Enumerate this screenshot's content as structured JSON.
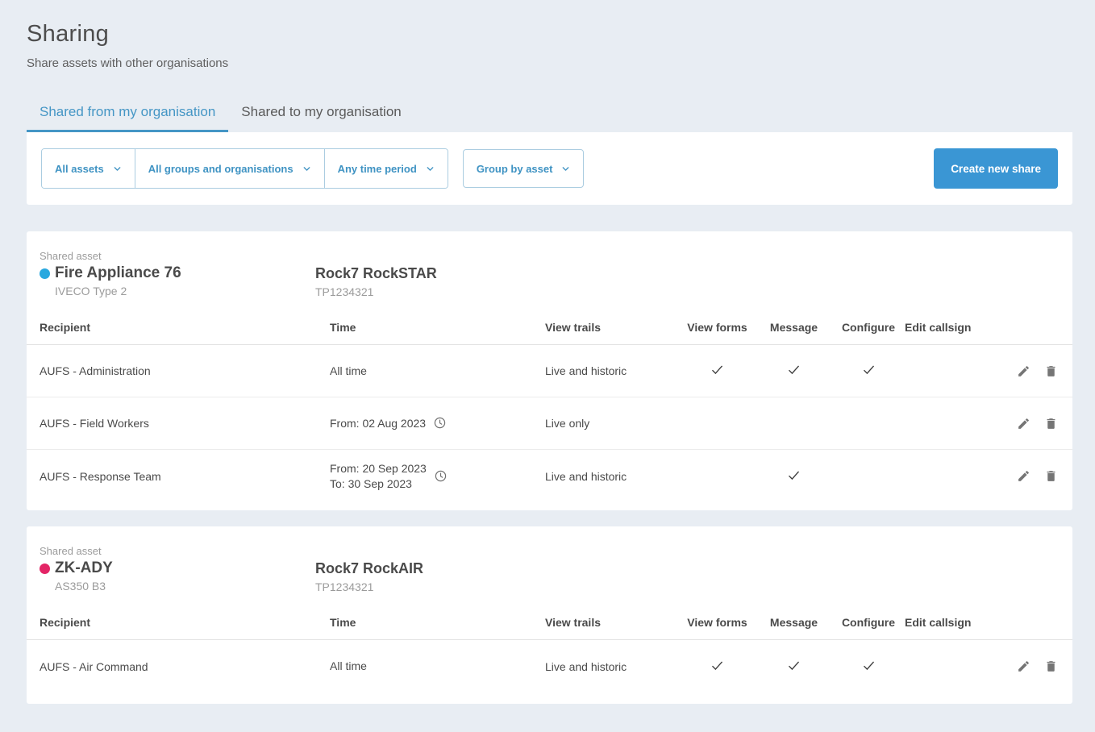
{
  "page": {
    "title": "Sharing",
    "subtitle": "Share assets with other organisations"
  },
  "tabs": [
    {
      "label": "Shared from my organisation",
      "active": true
    },
    {
      "label": "Shared to my organisation",
      "active": false
    }
  ],
  "filter_bar": {
    "asset_dropdown": "All assets",
    "groups_dropdown": "All groups and organisations",
    "time_dropdown": "Any time period",
    "group_by_dropdown": "Group by asset",
    "create_share_button": "Create new share"
  },
  "table_columns": [
    "Recipient",
    "Time",
    "View trails",
    "View forms",
    "Message",
    "Configure",
    "Edit callsign"
  ],
  "cards": [
    {
      "section_label": "Shared asset",
      "asset": {
        "name": "Fire Appliance 76",
        "model": "IVECO Type 2",
        "color": "#29A8DF"
      },
      "device": {
        "name": "Rock7 RockSTAR",
        "serial": "TP1234321"
      },
      "rows": [
        {
          "recipient": "AUFS - Administration",
          "time_lines": [
            "All time"
          ],
          "has_clock_icon": false,
          "view_trails": "Live and historic",
          "view_forms": true,
          "message": true,
          "configure": true,
          "edit_callsign": false
        },
        {
          "recipient": "AUFS - Field Workers",
          "time_lines": [
            "From: 02 Aug 2023"
          ],
          "has_clock_icon": true,
          "view_trails": "Live only",
          "view_forms": false,
          "message": false,
          "configure": false,
          "edit_callsign": false
        },
        {
          "recipient": "AUFS - Response Team",
          "time_lines": [
            "From: 20 Sep 2023",
            "To: 30 Sep 2023"
          ],
          "has_clock_icon": true,
          "view_trails": "Live and historic",
          "view_forms": false,
          "message": true,
          "configure": false,
          "edit_callsign": false
        }
      ]
    },
    {
      "section_label": "Shared asset",
      "asset": {
        "name": "ZK-ADY",
        "model": "AS350 B3",
        "color": "#E32566"
      },
      "device": {
        "name": "Rock7 RockAIR",
        "serial": "TP1234321"
      },
      "rows": [
        {
          "recipient": "AUFS - Air Command",
          "time_lines": [
            "All time"
          ],
          "has_clock_icon": false,
          "view_trails": "Live and historic",
          "view_forms": true,
          "message": true,
          "configure": true,
          "edit_callsign": false
        }
      ]
    }
  ],
  "colors": {
    "page_background": "#E8EDF3",
    "accent_blue": "#3A96D4",
    "tab_active_blue": "#4596C5",
    "dropdown_text_blue": "#3F93C3",
    "icon_gray": "#757575",
    "muted_text": "#9B9B9B"
  }
}
